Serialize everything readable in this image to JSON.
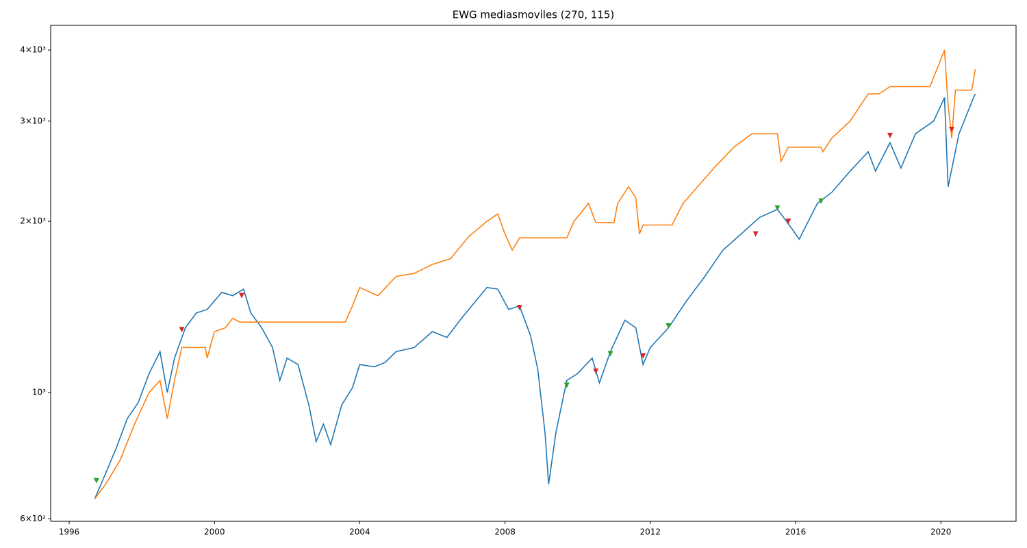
{
  "chart_data": {
    "type": "line",
    "title": "EWG mediasmoviles (270, 115)",
    "log_y": true,
    "xlim": [
      1995.49,
      2022.07
    ],
    "xticks": [
      1996,
      2000,
      2004,
      2008,
      2012,
      2016,
      2020
    ],
    "ylim": [
      594,
      4420
    ],
    "yticks": [
      {
        "value": 600,
        "label": "6×10²"
      },
      {
        "value": 1000,
        "label": "10³"
      },
      {
        "value": 2000,
        "label": "2×10³"
      },
      {
        "value": 3000,
        "label": "3×10³"
      },
      {
        "value": 4000,
        "label": "4×10³"
      }
    ],
    "series": [
      {
        "style": "line",
        "color": "#1f77b4",
        "x": [
          1996.7,
          1997.0,
          1997.3,
          1997.6,
          1997.9,
          1998.2,
          1998.5,
          1998.7,
          1998.9,
          1999.2,
          1999.5,
          1999.8,
          2000.2,
          2000.5,
          2000.8,
          2001.0,
          2001.3,
          2001.6,
          2001.8,
          2002.0,
          2002.3,
          2002.6,
          2002.8,
          2003.0,
          2003.2,
          2003.5,
          2003.8,
          2004.0,
          2004.4,
          2004.7,
          2005.0,
          2005.5,
          2006.0,
          2006.4,
          2006.8,
          2007.2,
          2007.5,
          2007.8,
          2008.1,
          2008.4,
          2008.7,
          2008.9,
          2009.1,
          2009.2,
          2009.4,
          2009.7,
          2010.0,
          2010.4,
          2010.6,
          2010.9,
          2011.3,
          2011.6,
          2011.8,
          2012.0,
          2012.5,
          2013.0,
          2013.5,
          2014.0,
          2014.5,
          2015.0,
          2015.5,
          2015.9,
          2016.1,
          2016.6,
          2017.0,
          2017.5,
          2018.0,
          2018.2,
          2018.6,
          2018.9,
          2019.3,
          2019.8,
          2020.1,
          2020.2,
          2020.5,
          2020.9,
          2020.95
        ],
        "values": [
          650,
          720,
          800,
          900,
          960,
          1080,
          1180,
          1000,
          1150,
          1300,
          1380,
          1400,
          1500,
          1480,
          1520,
          1380,
          1300,
          1200,
          1050,
          1150,
          1120,
          950,
          820,
          880,
          810,
          950,
          1020,
          1120,
          1110,
          1130,
          1180,
          1200,
          1280,
          1250,
          1350,
          1450,
          1530,
          1520,
          1400,
          1420,
          1260,
          1100,
          850,
          690,
          850,
          1050,
          1080,
          1150,
          1040,
          1180,
          1340,
          1300,
          1120,
          1200,
          1300,
          1450,
          1600,
          1780,
          1900,
          2030,
          2100,
          1940,
          1860,
          2150,
          2250,
          2450,
          2650,
          2450,
          2750,
          2480,
          2850,
          3000,
          3300,
          2300,
          2850,
          3300,
          3350
        ]
      },
      {
        "style": "line",
        "color": "#ff7f0e",
        "x": [
          1996.7,
          1997.0,
          1997.4,
          1997.8,
          1998.2,
          1998.5,
          1998.7,
          1998.9,
          1999.1,
          1999.75,
          1999.8,
          2000.0,
          2000.3,
          2000.5,
          2000.7,
          2003.6,
          2003.8,
          2004.0,
          2004.5,
          2005.0,
          2005.5,
          2006.0,
          2006.5,
          2007.0,
          2007.5,
          2007.8,
          2008.0,
          2008.2,
          2008.4,
          2009.7,
          2009.9,
          2010.3,
          2010.5,
          2011.0,
          2011.1,
          2011.4,
          2011.6,
          2011.7,
          2011.8,
          2012.6,
          2012.9,
          2013.3,
          2013.8,
          2014.3,
          2014.8,
          2015.5,
          2015.6,
          2015.8,
          2016.7,
          2016.75,
          2017.0,
          2017.5,
          2018.0,
          2018.3,
          2018.6,
          2019.7,
          2020.1,
          2020.2,
          2020.3,
          2020.4,
          2020.85,
          2020.95
        ],
        "values": [
          650,
          690,
          760,
          880,
          1000,
          1050,
          900,
          1050,
          1200,
          1200,
          1150,
          1280,
          1300,
          1350,
          1330,
          1330,
          1420,
          1530,
          1480,
          1600,
          1620,
          1680,
          1720,
          1880,
          2000,
          2060,
          1900,
          1780,
          1870,
          1870,
          2000,
          2150,
          1990,
          1990,
          2150,
          2300,
          2200,
          1900,
          1970,
          1970,
          2150,
          2300,
          2500,
          2700,
          2850,
          2850,
          2550,
          2700,
          2700,
          2650,
          2800,
          3000,
          3350,
          3350,
          3450,
          3450,
          4000,
          3200,
          2800,
          3400,
          3400,
          3700
        ]
      },
      {
        "style": "triangle",
        "color": "#2ca02c",
        "x": [
          1996.75,
          2009.7,
          2010.9,
          2012.5,
          2015.5,
          2016.7
        ],
        "values": [
          700,
          1030,
          1170,
          1310,
          2110,
          2170
        ]
      },
      {
        "style": "triangle",
        "color": "#d62728",
        "x": [
          1999.1,
          2000.75,
          2008.4,
          2010.5,
          2011.8,
          2014.9,
          2015.8,
          2018.6,
          2020.3
        ],
        "values": [
          1290,
          1480,
          1410,
          1090,
          1160,
          1900,
          2000,
          2830,
          2900
        ]
      }
    ]
  }
}
